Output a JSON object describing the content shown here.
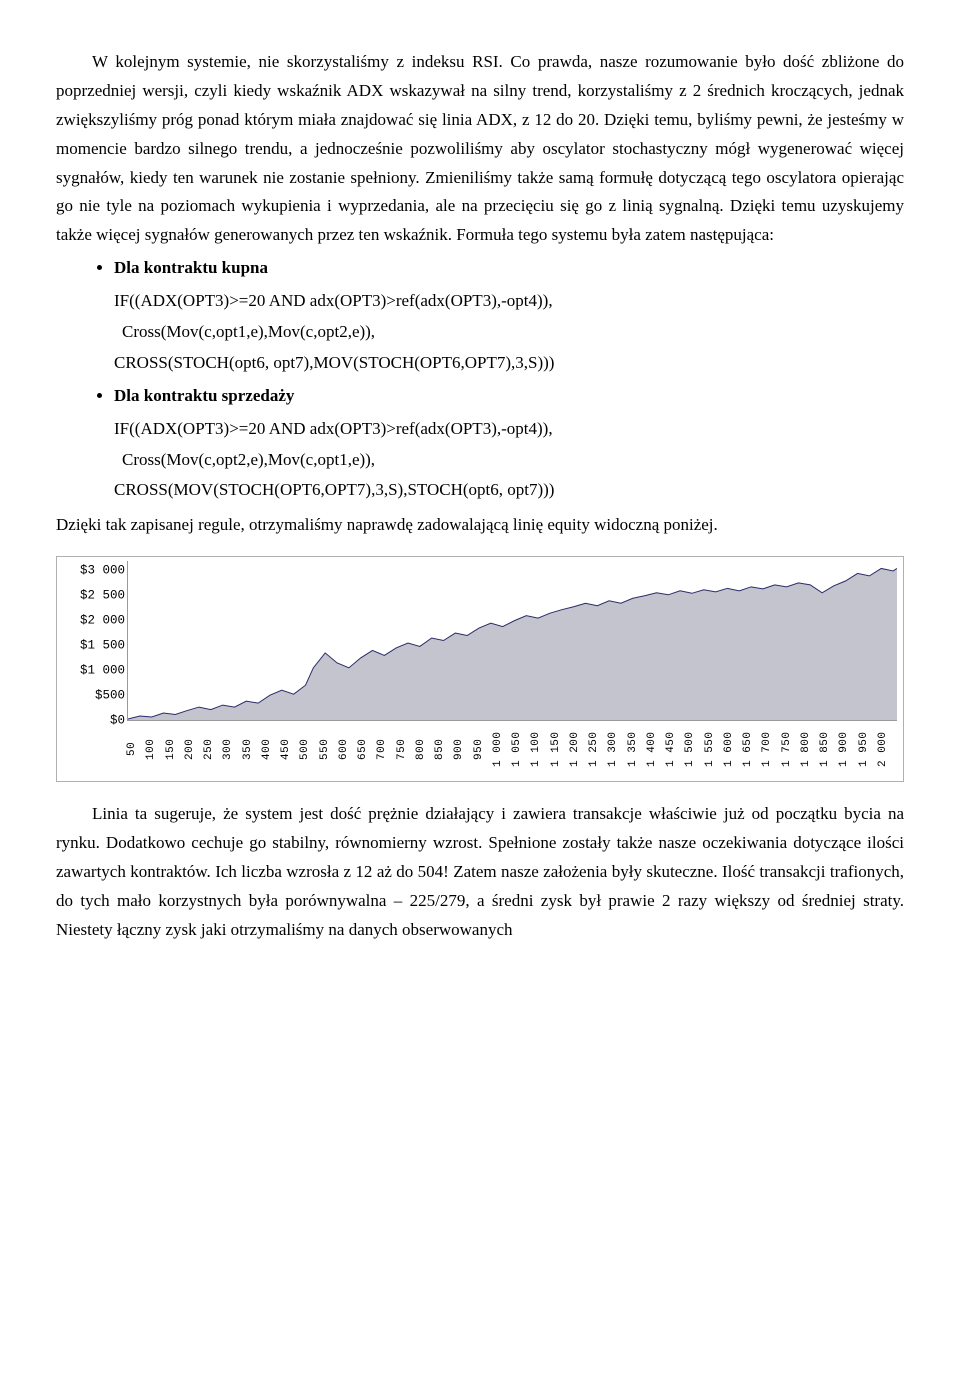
{
  "paragraphs": {
    "p1": "W kolejnym systemie, nie skorzystaliśmy z indeksu RSI. Co prawda, nasze rozumowanie było dość zbliżone do poprzedniej wersji, czyli kiedy wskaźnik ADX wskazywał na silny trend, korzystaliśmy z 2 średnich kroczących, jednak zwiększyliśmy próg ponad którym miała znajdować się linia ADX, z 12 do 20. Dzięki temu, byliśmy pewni, że jesteśmy w  momencie bardzo silnego trendu, a jednocześnie pozwoliliśmy aby oscylator stochastyczny mógł wygenerować więcej sygnałów, kiedy ten warunek nie zostanie spełniony. Zmieniliśmy także samą formułę dotyczącą tego oscylatora opierając go nie tyle na poziomach wykupienia i wyprzedania, ale na przecięciu się go z linią sygnalną. Dzięki temu uzyskujemy także więcej sygnałów generowanych przez ten wskaźnik. Formuła tego systemu była zatem następująca:",
    "bullet1": "Dla kontraktu kupna",
    "code1a": "IF((ADX(OPT3)>=20 AND adx(OPT3)>ref(adx(OPT3),-opt4)),",
    "code1b": "Cross(Mov(c,opt1,e),Mov(c,opt2,e)),",
    "code1c": "CROSS(STOCH(opt6, opt7),MOV(STOCH(OPT6,OPT7),3,S)))",
    "bullet2": "Dla kontraktu sprzedaży",
    "code2a": "IF((ADX(OPT3)>=20 AND adx(OPT3)>ref(adx(OPT3),-opt4)),",
    "code2b": "Cross(Mov(c,opt2,e),Mov(c,opt1,e)),",
    "code2c": "CROSS(MOV(STOCH(OPT6,OPT7),3,S),STOCH(opt6, opt7)))",
    "p2": "Dzięki tak zapisanej regule, otrzymaliśmy naprawdę zadowalającą linię equity widoczną poniżej.",
    "p3": "Linia ta sugeruje, że system jest dość prężnie działający i zawiera transakcje właściwie już od początku bycia na rynku. Dodatkowo cechuje go stabilny, równomierny wzrost. Spełnione zostały także nasze oczekiwania dotyczące ilości zawartych kontraktów. Ich liczba wzrosła z 12  aż do 504! Zatem nasze założenia były skuteczne. Ilość transakcji trafionych, do tych mało korzystnych była porównywalna – 225/279, a średni zysk był prawie 2 razy większy od średniej straty. Niestety łączny zysk jaki otrzymaliśmy na danych obserwowanych"
  },
  "chart": {
    "type": "area",
    "background_color": "#ffffff",
    "area_fill": "#c4c4cf",
    "line_color": "#2a2a6a",
    "axis_color": "#999999",
    "font_family": "Courier New",
    "ylabel_fontsize": 12.5,
    "xlabel_fontsize": 11,
    "ylim": [
      0,
      3200
    ],
    "yticks": [
      0,
      500,
      1000,
      1500,
      2000,
      2500,
      3000
    ],
    "ytick_labels": [
      "$0",
      "$500",
      "$1 000",
      "$1 500",
      "$2 000",
      "$2 500",
      "$3 000"
    ],
    "xlim": [
      50,
      2000
    ],
    "xticks": [
      50,
      100,
      150,
      200,
      250,
      300,
      350,
      400,
      450,
      500,
      550,
      600,
      650,
      700,
      750,
      800,
      850,
      900,
      950,
      1000,
      1050,
      1100,
      1150,
      1200,
      1250,
      1300,
      1350,
      1400,
      1450,
      1500,
      1550,
      1600,
      1650,
      1700,
      1750,
      1800,
      1850,
      1900,
      1950,
      2000
    ],
    "xtick_labels": [
      "50",
      "100",
      "150",
      "200",
      "250",
      "300",
      "350",
      "400",
      "450",
      "500",
      "550",
      "600",
      "650",
      "700",
      "750",
      "800",
      "850",
      "900",
      "950",
      "1 000",
      "1 050",
      "1 100",
      "1 150",
      "1 200",
      "1 250",
      "1 300",
      "1 350",
      "1 400",
      "1 450",
      "1 500",
      "1 550",
      "1 600",
      "1 650",
      "1 700",
      "1 750",
      "1 800",
      "1 850",
      "1 900",
      "1 950",
      "2 000"
    ],
    "series": [
      {
        "x": 50,
        "y": 20
      },
      {
        "x": 80,
        "y": 80
      },
      {
        "x": 110,
        "y": 60
      },
      {
        "x": 140,
        "y": 140
      },
      {
        "x": 170,
        "y": 110
      },
      {
        "x": 200,
        "y": 190
      },
      {
        "x": 230,
        "y": 260
      },
      {
        "x": 260,
        "y": 210
      },
      {
        "x": 290,
        "y": 300
      },
      {
        "x": 320,
        "y": 260
      },
      {
        "x": 350,
        "y": 380
      },
      {
        "x": 380,
        "y": 340
      },
      {
        "x": 410,
        "y": 500
      },
      {
        "x": 440,
        "y": 600
      },
      {
        "x": 470,
        "y": 520
      },
      {
        "x": 500,
        "y": 700
      },
      {
        "x": 520,
        "y": 1050
      },
      {
        "x": 550,
        "y": 1350
      },
      {
        "x": 580,
        "y": 1150
      },
      {
        "x": 610,
        "y": 1050
      },
      {
        "x": 640,
        "y": 1250
      },
      {
        "x": 670,
        "y": 1400
      },
      {
        "x": 700,
        "y": 1300
      },
      {
        "x": 730,
        "y": 1450
      },
      {
        "x": 760,
        "y": 1550
      },
      {
        "x": 790,
        "y": 1480
      },
      {
        "x": 820,
        "y": 1650
      },
      {
        "x": 850,
        "y": 1600
      },
      {
        "x": 880,
        "y": 1750
      },
      {
        "x": 910,
        "y": 1700
      },
      {
        "x": 940,
        "y": 1850
      },
      {
        "x": 970,
        "y": 1950
      },
      {
        "x": 1000,
        "y": 1880
      },
      {
        "x": 1030,
        "y": 2000
      },
      {
        "x": 1060,
        "y": 2100
      },
      {
        "x": 1090,
        "y": 2050
      },
      {
        "x": 1120,
        "y": 2150
      },
      {
        "x": 1150,
        "y": 2220
      },
      {
        "x": 1180,
        "y": 2280
      },
      {
        "x": 1210,
        "y": 2350
      },
      {
        "x": 1240,
        "y": 2300
      },
      {
        "x": 1270,
        "y": 2400
      },
      {
        "x": 1300,
        "y": 2350
      },
      {
        "x": 1330,
        "y": 2450
      },
      {
        "x": 1360,
        "y": 2500
      },
      {
        "x": 1390,
        "y": 2560
      },
      {
        "x": 1420,
        "y": 2520
      },
      {
        "x": 1450,
        "y": 2600
      },
      {
        "x": 1480,
        "y": 2550
      },
      {
        "x": 1510,
        "y": 2620
      },
      {
        "x": 1540,
        "y": 2580
      },
      {
        "x": 1570,
        "y": 2650
      },
      {
        "x": 1600,
        "y": 2600
      },
      {
        "x": 1630,
        "y": 2680
      },
      {
        "x": 1660,
        "y": 2640
      },
      {
        "x": 1690,
        "y": 2720
      },
      {
        "x": 1720,
        "y": 2680
      },
      {
        "x": 1750,
        "y": 2760
      },
      {
        "x": 1780,
        "y": 2720
      },
      {
        "x": 1810,
        "y": 2560
      },
      {
        "x": 1840,
        "y": 2700
      },
      {
        "x": 1870,
        "y": 2800
      },
      {
        "x": 1900,
        "y": 2950
      },
      {
        "x": 1930,
        "y": 2900
      },
      {
        "x": 1960,
        "y": 3050
      },
      {
        "x": 1990,
        "y": 3000
      },
      {
        "x": 2000,
        "y": 3050
      }
    ]
  }
}
